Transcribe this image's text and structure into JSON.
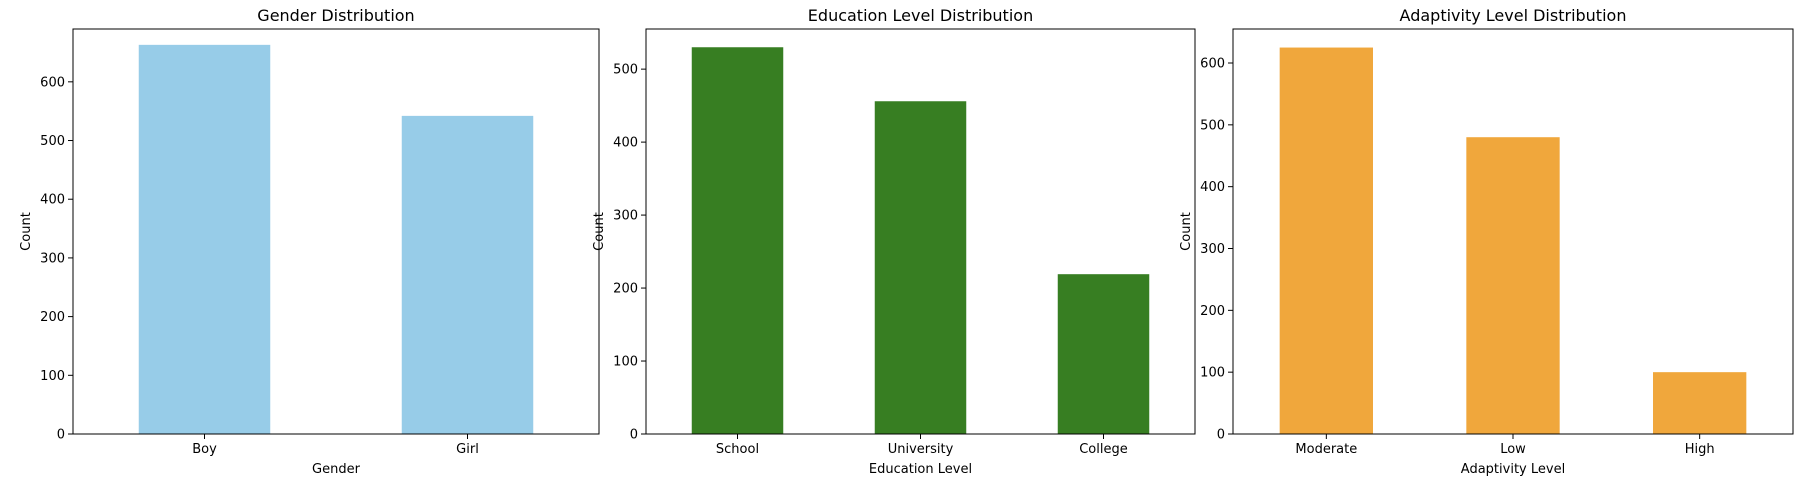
{
  "chart_data": [
    {
      "type": "bar",
      "title": "Gender Distribution",
      "xlabel": "Gender",
      "ylabel": "Count",
      "categories": [
        "Boy",
        "Girl"
      ],
      "values": [
        663,
        542
      ],
      "ylim": [
        0,
        690
      ],
      "yticks": [
        0,
        100,
        200,
        300,
        400,
        500,
        600
      ],
      "color": "#97cce8",
      "grid": false,
      "legend": "none"
    },
    {
      "type": "bar",
      "title": "Education Level Distribution",
      "xlabel": "Education Level",
      "ylabel": "Count",
      "categories": [
        "School",
        "University",
        "College"
      ],
      "values": [
        530,
        456,
        219
      ],
      "ylim": [
        0,
        555
      ],
      "yticks": [
        0,
        100,
        200,
        300,
        400,
        500
      ],
      "color": "#377e22",
      "grid": false,
      "legend": "none"
    },
    {
      "type": "bar",
      "title": "Adaptivity Level Distribution",
      "xlabel": "Adaptivity Level",
      "ylabel": "Count",
      "categories": [
        "Moderate",
        "Low",
        "High"
      ],
      "values": [
        625,
        480,
        100
      ],
      "ylim": [
        0,
        655
      ],
      "yticks": [
        0,
        100,
        200,
        300,
        400,
        500,
        600
      ],
      "color": "#f0a73c",
      "grid": false,
      "legend": "none"
    }
  ]
}
